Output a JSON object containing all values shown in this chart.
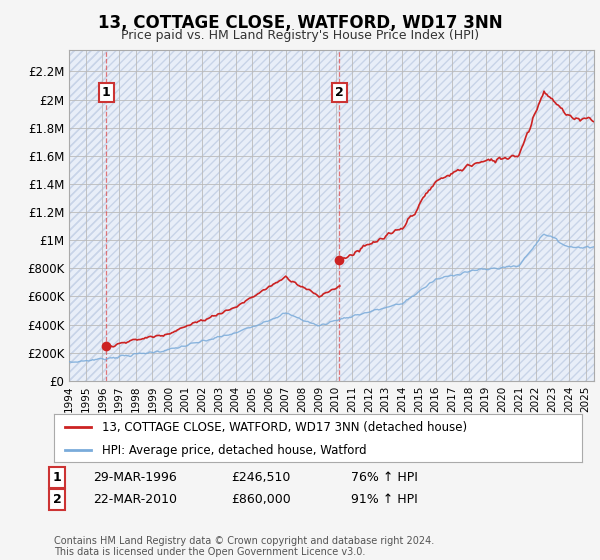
{
  "title": "13, COTTAGE CLOSE, WATFORD, WD17 3NN",
  "subtitle": "Price paid vs. HM Land Registry's House Price Index (HPI)",
  "ylabel_ticks": [
    "£0",
    "£200K",
    "£400K",
    "£600K",
    "£800K",
    "£1M",
    "£1.2M",
    "£1.4M",
    "£1.6M",
    "£1.8M",
    "£2M",
    "£2.2M"
  ],
  "ytick_values": [
    0,
    200000,
    400000,
    600000,
    800000,
    1000000,
    1200000,
    1400000,
    1600000,
    1800000,
    2000000,
    2200000
  ],
  "ylim": [
    0,
    2350000
  ],
  "xlim_start": 1994.0,
  "xlim_end": 2025.5,
  "legend_line1": "13, COTTAGE CLOSE, WATFORD, WD17 3NN (detached house)",
  "legend_line2": "HPI: Average price, detached house, Watford",
  "sale1_year": 1996.22,
  "sale1_price": 246510,
  "sale2_year": 2010.22,
  "sale2_price": 860000,
  "annotation1_text": "29-MAR-1996",
  "annotation1_price": "£246,510",
  "annotation1_hpi": "76% ↑ HPI",
  "annotation2_text": "22-MAR-2010",
  "annotation2_price": "£860,000",
  "annotation2_hpi": "91% ↑ HPI",
  "footer": "Contains HM Land Registry data © Crown copyright and database right 2024.\nThis data is licensed under the Open Government Licence v3.0.",
  "red_color": "#cc2222",
  "blue_color": "#7aabda",
  "fig_bg": "#f5f5f5",
  "plot_bg": "#e8eef8",
  "hatch_color": "#c8d4e8"
}
